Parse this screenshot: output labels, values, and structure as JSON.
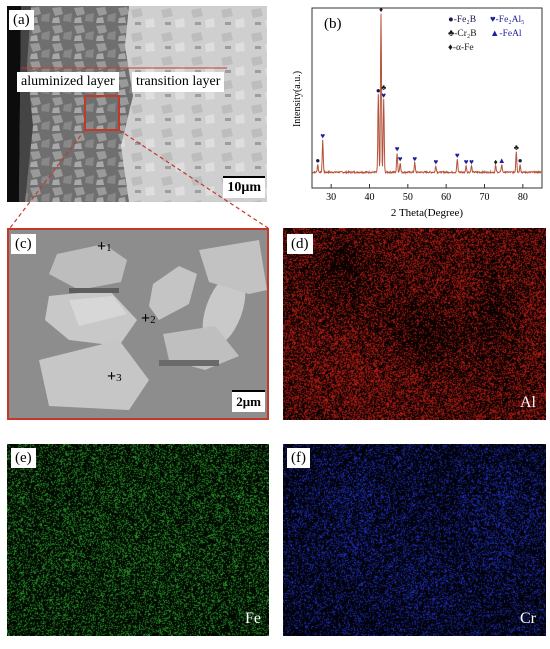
{
  "panels": {
    "a": {
      "tag": "(a)",
      "layer_left": "aluminized layer",
      "layer_right": "transition layer",
      "scale": "10μm"
    },
    "b": {
      "tag": "(b)",
      "legend": [
        {
          "symbol": "circle",
          "text": "-Fe₂B",
          "color": "#1a1a4d"
        },
        {
          "symbol": "heart",
          "text": "-Fe₂Al₅",
          "color": "#1f1f9a"
        },
        {
          "symbol": "club",
          "text": "-Cr₂B",
          "color": "#1a1a1a"
        },
        {
          "symbol": "triangle",
          "text": "-FeAl",
          "color": "#1f1f9a"
        },
        {
          "symbol": "diamond",
          "text": "-α-Fe",
          "color": "#1a1a1a"
        }
      ]
    },
    "c": {
      "tag": "(c)",
      "points": [
        "1",
        "2",
        "3"
      ],
      "scale": "2μm"
    },
    "d": {
      "tag": "(d)",
      "element": "Al",
      "color": "#c21e16"
    },
    "e": {
      "tag": "(e)",
      "element": "Fe",
      "color": "#2aa02a"
    },
    "f": {
      "tag": "(f)",
      "element": "Cr",
      "color": "#2233cc"
    }
  },
  "chart_data": {
    "type": "line",
    "title": "",
    "xlabel": "2 Theta(Degree)",
    "ylabel": "Intensity(a.u.)",
    "xlim": [
      25,
      85
    ],
    "xticks": [
      30,
      40,
      50,
      60,
      70,
      80
    ],
    "series_color": "#b5533a",
    "peaks": [
      {
        "x": 26.5,
        "h": 0.05
      },
      {
        "x": 27.8,
        "h": 0.2
      },
      {
        "x": 42.3,
        "h": 0.48
      },
      {
        "x": 43.0,
        "h": 0.98
      },
      {
        "x": 43.7,
        "h": 0.45
      },
      {
        "x": 47.2,
        "h": 0.12
      },
      {
        "x": 48.0,
        "h": 0.06
      },
      {
        "x": 51.8,
        "h": 0.06
      },
      {
        "x": 57.3,
        "h": 0.04
      },
      {
        "x": 62.9,
        "h": 0.08
      },
      {
        "x": 65.2,
        "h": 0.04
      },
      {
        "x": 66.6,
        "h": 0.04
      },
      {
        "x": 72.9,
        "h": 0.04
      },
      {
        "x": 74.5,
        "h": 0.05
      },
      {
        "x": 78.3,
        "h": 0.13
      },
      {
        "x": 79.3,
        "h": 0.05
      }
    ],
    "markers": [
      {
        "x": 26.5,
        "h": 0.05,
        "symbol": "circle"
      },
      {
        "x": 27.8,
        "h": 0.2,
        "symbol": "heart"
      },
      {
        "x": 43.0,
        "h": 0.98,
        "symbol": "diamond"
      },
      {
        "x": 42.3,
        "h": 0.48,
        "symbol": "circle"
      },
      {
        "x": 43.7,
        "h": 0.45,
        "symbol": "heart"
      },
      {
        "x": 43.7,
        "h": 0.45,
        "symbol": "club"
      },
      {
        "x": 47.2,
        "h": 0.12,
        "symbol": "heart"
      },
      {
        "x": 48.0,
        "h": 0.06,
        "symbol": "heart"
      },
      {
        "x": 51.8,
        "h": 0.06,
        "symbol": "heart"
      },
      {
        "x": 57.3,
        "h": 0.04,
        "symbol": "heart"
      },
      {
        "x": 62.9,
        "h": 0.08,
        "symbol": "heart"
      },
      {
        "x": 65.2,
        "h": 0.04,
        "symbol": "heart"
      },
      {
        "x": 66.6,
        "h": 0.04,
        "symbol": "heart"
      },
      {
        "x": 72.9,
        "h": 0.04,
        "symbol": "diamond"
      },
      {
        "x": 74.5,
        "h": 0.05,
        "symbol": "triangle"
      },
      {
        "x": 78.3,
        "h": 0.13,
        "symbol": "club"
      },
      {
        "x": 79.3,
        "h": 0.05,
        "symbol": "circle"
      }
    ]
  }
}
